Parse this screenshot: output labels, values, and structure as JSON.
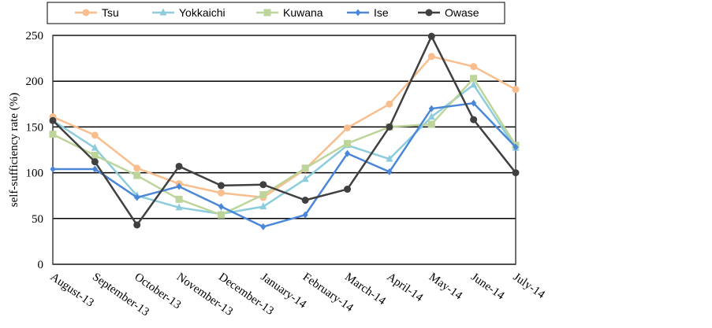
{
  "chart_data": {
    "type": "line",
    "title": "",
    "xlabel": "",
    "ylabel": "self-sufficiency rate (%)",
    "ylim": [
      0,
      250
    ],
    "yticks": [
      0,
      50,
      100,
      150,
      200,
      250
    ],
    "grid": true,
    "legend_position": "top",
    "categories": [
      "August-13",
      "September-13",
      "October-13",
      "November-13",
      "December-13",
      "January-14",
      "February-14",
      "March-14",
      "April-14",
      "May-14",
      "June-14",
      "July-14"
    ],
    "series": [
      {
        "name": "Tsu",
        "color": "#F9BE8E",
        "marker": "circle",
        "values": [
          161,
          141,
          105,
          88,
          78,
          73,
          104,
          149,
          175,
          227,
          216,
          191
        ]
      },
      {
        "name": "Yokkaichi",
        "color": "#8CCCDC",
        "marker": "triangle",
        "values": [
          157,
          127,
          75,
          62,
          55,
          63,
          93,
          130,
          115,
          161,
          196,
          127
        ]
      },
      {
        "name": "Kuwana",
        "color": "#BDD59A",
        "marker": "square",
        "values": [
          142,
          119,
          97,
          71,
          54,
          76,
          105,
          132,
          150,
          153,
          203,
          130
        ]
      },
      {
        "name": "Ise",
        "color": "#4A87D8",
        "marker": "diamond",
        "values": [
          104,
          104,
          73,
          85,
          63,
          41,
          54,
          121,
          101,
          170,
          176,
          128
        ]
      },
      {
        "name": "Owase",
        "color": "#404040",
        "marker": "circle",
        "values": [
          157,
          112,
          43,
          107,
          86,
          87,
          70,
          82,
          150,
          249,
          158,
          100
        ]
      }
    ]
  }
}
